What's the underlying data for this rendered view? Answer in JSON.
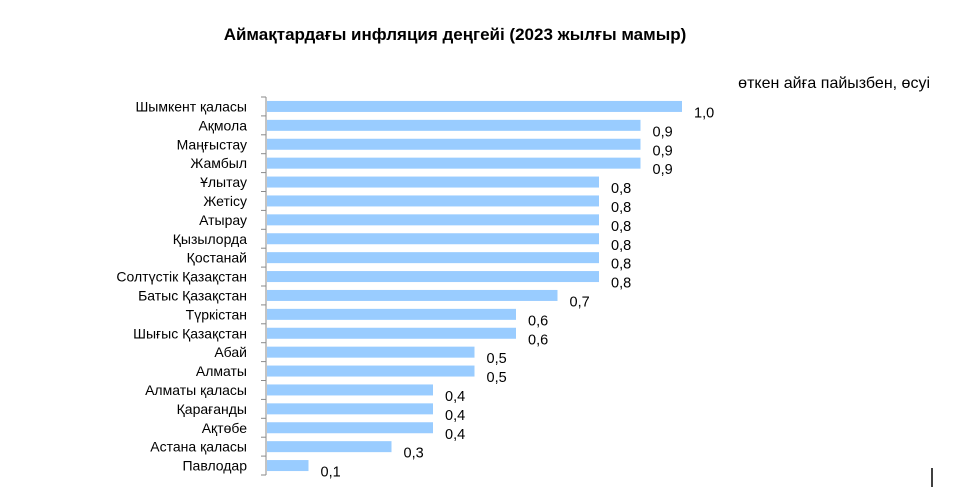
{
  "chart_data": {
    "type": "bar",
    "orientation": "horizontal",
    "title": "Аймақтардағы инфляция деңгейі (2023 жылғы мамыр)",
    "unit_label": "өткен айға пайызбен, өсуі",
    "xlabel": "",
    "ylabel": "",
    "xlim": [
      0,
      1.0
    ],
    "grid": false,
    "legend": "none",
    "bar_color": "#99CCFF",
    "categories": [
      "Шымкент қаласы",
      "Ақмола",
      "Маңғыстау",
      "Жамбыл",
      "Ұлытау",
      "Жетісу",
      "Атырау",
      "Қызылорда",
      "Қостанай",
      "Солтүстік Қазақстан",
      "Батыс Қазақстан",
      "Түркістан",
      "Шығыс Қазақстан",
      "Абай",
      "Алматы",
      "Алматы қаласы",
      "Қарағанды",
      "Ақтөбе",
      "Астана қаласы",
      "Павлодар"
    ],
    "values": [
      1.0,
      0.9,
      0.9,
      0.9,
      0.8,
      0.8,
      0.8,
      0.8,
      0.8,
      0.8,
      0.7,
      0.6,
      0.6,
      0.5,
      0.5,
      0.4,
      0.4,
      0.4,
      0.3,
      0.1
    ],
    "value_labels": [
      "1,0",
      "0,9",
      "0,9",
      "0,9",
      "0,8",
      "0,8",
      "0,8",
      "0,8",
      "0,8",
      "0,8",
      "0,7",
      "0,6",
      "0,6",
      "0,5",
      "0,5",
      "0,4",
      "0,4",
      "0,4",
      "0,3",
      "0,1"
    ]
  }
}
